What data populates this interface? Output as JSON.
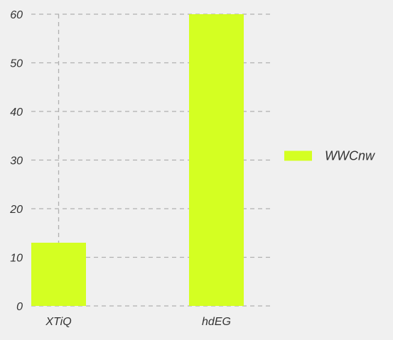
{
  "chart_data": {
    "type": "bar",
    "categories": [
      "XTiQ",
      "hdEG"
    ],
    "series": [
      {
        "name": "WWCnw",
        "values": [
          13,
          60
        ]
      }
    ],
    "ylim": [
      0,
      60
    ],
    "yticks": [
      0,
      10,
      20,
      30,
      40,
      50,
      60
    ],
    "grid": true,
    "legend_position": "right",
    "colors": {
      "background": "#f0f0f0",
      "bar": "#d4ff22",
      "grid": "#b0b0b0",
      "text": "#333333"
    }
  }
}
